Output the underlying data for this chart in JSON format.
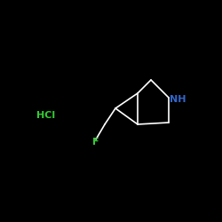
{
  "background_color": "#000000",
  "bond_color": "#ffffff",
  "F_color": "#33cc33",
  "N_color": "#3366cc",
  "HCl_color": "#33cc33",
  "F_label": "F",
  "NH_label": "NH",
  "HCl_label": "HCl",
  "figsize": [
    2.5,
    2.5
  ],
  "dpi": 100,
  "lw": 1.2
}
